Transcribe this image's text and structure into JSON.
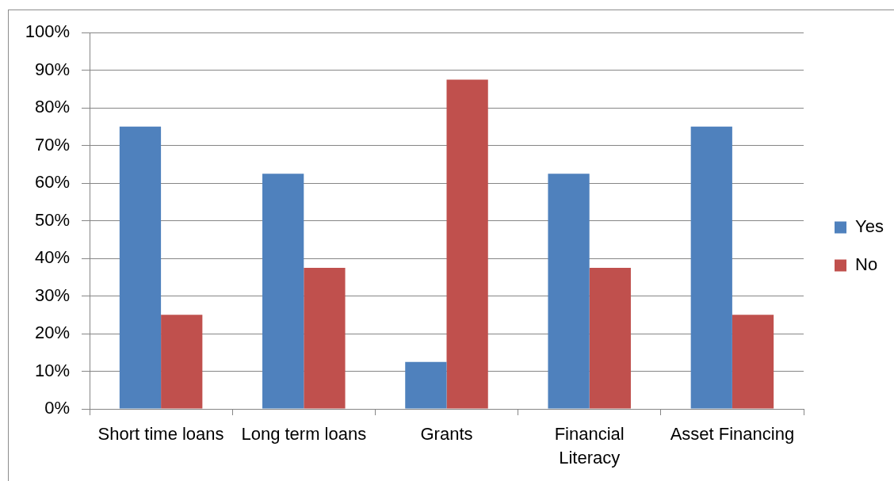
{
  "chart_data": {
    "type": "bar",
    "categories": [
      "Short time loans",
      "Long term loans",
      "Grants",
      "Financial Literacy",
      "Asset Financing"
    ],
    "series": [
      {
        "name": "Yes",
        "color": "#4f81bd",
        "values": [
          75,
          62.5,
          12.5,
          62.5,
          75
        ]
      },
      {
        "name": "No",
        "color": "#c0504d",
        "values": [
          25,
          37.5,
          87.5,
          37.5,
          25
        ]
      }
    ],
    "ylim": [
      0,
      100
    ],
    "yticks": [
      {
        "value": 0,
        "label": "0%"
      },
      {
        "value": 10,
        "label": "10%"
      },
      {
        "value": 20,
        "label": "20%"
      },
      {
        "value": 30,
        "label": "30%"
      },
      {
        "value": 40,
        "label": "40%"
      },
      {
        "value": 50,
        "label": "50%"
      },
      {
        "value": 60,
        "label": "60%"
      },
      {
        "value": 70,
        "label": "70%"
      },
      {
        "value": 80,
        "label": "80%"
      },
      {
        "value": 90,
        "label": "90%"
      },
      {
        "value": 100,
        "label": "100%"
      }
    ],
    "grid": "y",
    "legend": "right"
  }
}
